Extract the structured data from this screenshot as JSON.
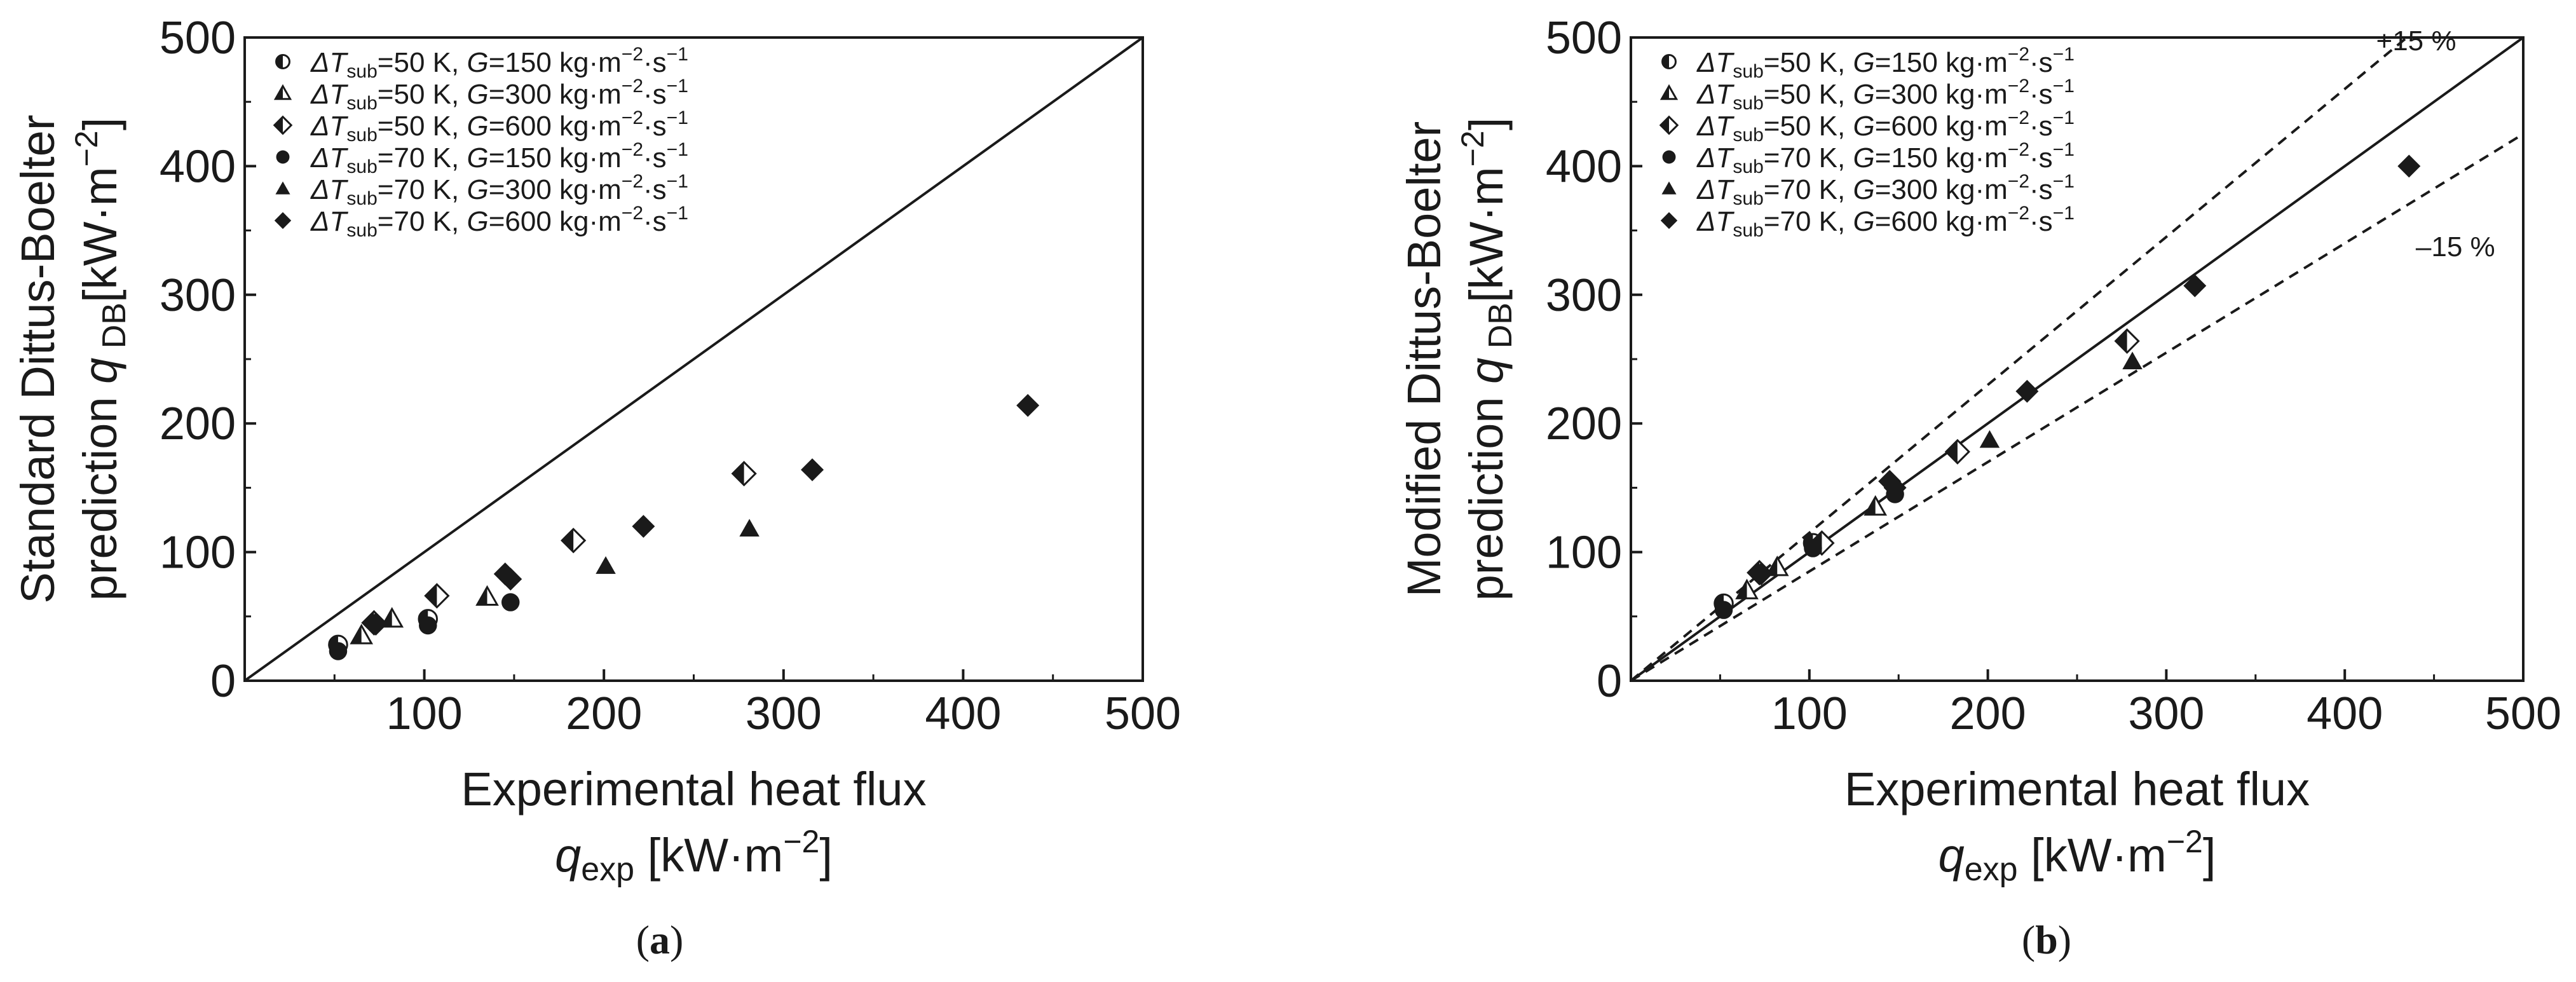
{
  "chart_data": [
    {
      "type": "scatter",
      "panel_label": "(a)",
      "xlabel_line1": "Experimental heat flux",
      "xlabel_var": "q",
      "xlabel_sub": "exp",
      "xlabel_unit": "[kW·m",
      "xlabel_exp": "−2",
      "xlabel_close": "]",
      "ylabel_line1": "Standard Dittus-Boelter",
      "ylabel_pre": "prediction ",
      "ylabel_var": "q",
      "ylabel_sub": "DB",
      "ylabel_unit": "[kW·m",
      "ylabel_exp": "−2",
      "ylabel_close": "]",
      "xlim": [
        0,
        500
      ],
      "ylim": [
        0,
        500
      ],
      "xticks": [
        "100",
        "200",
        "300",
        "400",
        "500"
      ],
      "yticks": [
        "0",
        "100",
        "200",
        "300",
        "400",
        "500"
      ],
      "grid": false,
      "legend_position": "top-left",
      "reference_lines": [
        {
          "kind": "parity",
          "slope": 1.0,
          "style": "solid"
        }
      ],
      "series": [
        {
          "legend": {
            "dt": "50",
            "g": "150"
          },
          "marker": "circle-half",
          "points": [
            [
              52,
              28
            ],
            [
              102,
              48
            ]
          ]
        },
        {
          "legend": {
            "dt": "50",
            "g": "300"
          },
          "marker": "triangle-half",
          "points": [
            [
              65,
              35
            ],
            [
              82,
              48
            ],
            [
              135,
              65
            ]
          ]
        },
        {
          "legend": {
            "dt": "50",
            "g": "600"
          },
          "marker": "diamond-half",
          "points": [
            [
              72,
              45
            ],
            [
              107,
              66
            ],
            [
              183,
              109
            ],
            [
              278,
              161
            ]
          ]
        },
        {
          "legend": {
            "dt": "70",
            "g": "150"
          },
          "marker": "circle",
          "points": [
            [
              52,
              23
            ],
            [
              102,
              43
            ],
            [
              148,
              61
            ]
          ]
        },
        {
          "legend": {
            "dt": "70",
            "g": "300"
          },
          "marker": "triangle",
          "points": [
            [
              201,
              89
            ],
            [
              281,
              118
            ]
          ]
        },
        {
          "legend": {
            "dt": "70",
            "g": "600"
          },
          "marker": "diamond",
          "points": [
            [
              73,
              44
            ],
            [
              145,
              83
            ],
            [
              148,
              79
            ],
            [
              222,
              120
            ],
            [
              316,
              164
            ],
            [
              436,
              214
            ]
          ]
        }
      ],
      "annotations": []
    },
    {
      "type": "scatter",
      "panel_label": "(b)",
      "xlabel_line1": "Experimental heat flux",
      "xlabel_var": "q",
      "xlabel_sub": "exp",
      "xlabel_unit": "[kW·m",
      "xlabel_exp": "−2",
      "xlabel_close": "]",
      "ylabel_line1": "Modified Dittus-Boelter",
      "ylabel_pre": "prediction ",
      "ylabel_var": "q",
      "ylabel_sub": "DB",
      "ylabel_unit": "[kW·m",
      "ylabel_exp": "−2",
      "ylabel_close": "]",
      "xlim": [
        0,
        500
      ],
      "ylim": [
        0,
        500
      ],
      "xticks": [
        "100",
        "200",
        "300",
        "400",
        "500"
      ],
      "yticks": [
        "0",
        "100",
        "200",
        "300",
        "400",
        "500"
      ],
      "grid": false,
      "legend_position": "top-left",
      "reference_lines": [
        {
          "kind": "parity",
          "slope": 1.0,
          "style": "solid"
        },
        {
          "kind": "plus",
          "slope": 1.15,
          "style": "dashed"
        },
        {
          "kind": "minus",
          "slope": 0.85,
          "style": "dashed"
        }
      ],
      "series": [
        {
          "legend": {
            "dt": "50",
            "g": "150"
          },
          "marker": "circle-half",
          "points": [
            [
              52,
              60
            ],
            [
              102,
              107
            ]
          ]
        },
        {
          "legend": {
            "dt": "50",
            "g": "300"
          },
          "marker": "triangle-half",
          "points": [
            [
              65,
              70
            ],
            [
              82,
              88
            ],
            [
              137,
              135
            ]
          ]
        },
        {
          "legend": {
            "dt": "50",
            "g": "600"
          },
          "marker": "diamond-half",
          "points": [
            [
              72,
              84
            ],
            [
              107,
              107
            ],
            [
              183,
              178
            ],
            [
              278,
              264
            ]
          ]
        },
        {
          "legend": {
            "dt": "70",
            "g": "150"
          },
          "marker": "circle",
          "points": [
            [
              52,
              55
            ],
            [
              102,
              103
            ],
            [
              148,
              145
            ]
          ]
        },
        {
          "legend": {
            "dt": "70",
            "g": "300"
          },
          "marker": "triangle",
          "points": [
            [
              201,
              187
            ],
            [
              281,
              248
            ]
          ]
        },
        {
          "legend": {
            "dt": "70",
            "g": "600"
          },
          "marker": "diamond",
          "points": [
            [
              73,
              83
            ],
            [
              145,
              155
            ],
            [
              148,
              150
            ],
            [
              222,
              225
            ],
            [
              316,
              307
            ],
            [
              436,
              400
            ]
          ]
        }
      ],
      "annotations": [
        {
          "text": "+15 %",
          "at": [
            440,
            490
          ]
        },
        {
          "text": "–15 %",
          "at": [
            462,
            330
          ]
        }
      ]
    }
  ],
  "legend_template": {
    "delta": "ΔT",
    "sub": "sub",
    "eq1": "=",
    "k": " K, ",
    "g": "G",
    "eq2": "=",
    "unit": " kg·m",
    "exp1": "−2",
    "mid": "·s",
    "exp2": "−1"
  }
}
